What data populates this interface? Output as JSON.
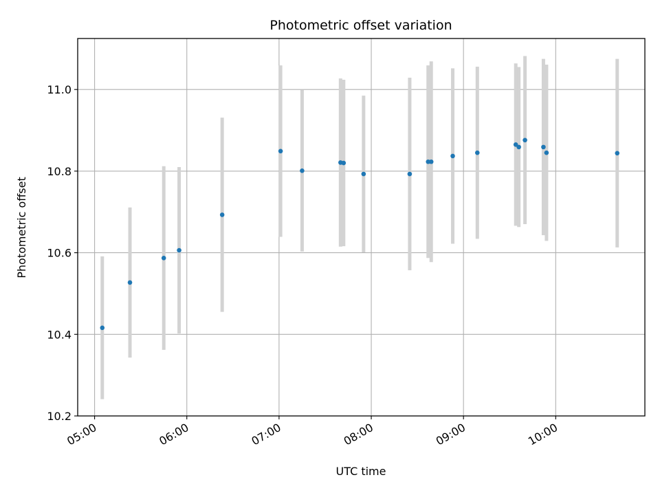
{
  "chart_data": {
    "type": "scatter",
    "title": "Photometric offset variation",
    "xlabel": "UTC time",
    "ylabel": "Photometric offset",
    "x_ticks": [
      "05:00",
      "06:00",
      "07:00",
      "08:00",
      "09:00",
      "10:00"
    ],
    "y_ticks": [
      "10.2",
      "10.4",
      "10.6",
      "10.8",
      "11.0"
    ],
    "xlim": [
      "04:49",
      "10:58"
    ],
    "ylim": [
      10.2,
      11.125
    ],
    "grid": true,
    "marker_color": "#1f77b4",
    "errorbar_color": "#d3d3d3",
    "points": [
      {
        "x": "05:05",
        "y": 10.416,
        "err": 0.175
      },
      {
        "x": "05:23",
        "y": 10.527,
        "err": 0.184
      },
      {
        "x": "05:45",
        "y": 10.587,
        "err": 0.225
      },
      {
        "x": "05:55",
        "y": 10.606,
        "err": 0.204
      },
      {
        "x": "06:23",
        "y": 10.693,
        "err": 0.238
      },
      {
        "x": "07:01",
        "y": 10.849,
        "err": 0.21
      },
      {
        "x": "07:15",
        "y": 10.801,
        "err": 0.198
      },
      {
        "x": "07:40",
        "y": 10.821,
        "err": 0.206
      },
      {
        "x": "07:42",
        "y": 10.82,
        "err": 0.204
      },
      {
        "x": "07:55",
        "y": 10.793,
        "err": 0.192
      },
      {
        "x": "08:25",
        "y": 10.793,
        "err": 0.236
      },
      {
        "x": "08:37",
        "y": 10.823,
        "err": 0.236
      },
      {
        "x": "08:39",
        "y": 10.823,
        "err": 0.246
      },
      {
        "x": "08:53",
        "y": 10.837,
        "err": 0.215
      },
      {
        "x": "09:09",
        "y": 10.845,
        "err": 0.211
      },
      {
        "x": "09:34",
        "y": 10.865,
        "err": 0.199
      },
      {
        "x": "09:36",
        "y": 10.859,
        "err": 0.196
      },
      {
        "x": "09:40",
        "y": 10.876,
        "err": 0.206
      },
      {
        "x": "09:52",
        "y": 10.859,
        "err": 0.216
      },
      {
        "x": "09:54",
        "y": 10.845,
        "err": 0.216
      },
      {
        "x": "10:40",
        "y": 10.844,
        "err": 0.231
      }
    ]
  }
}
